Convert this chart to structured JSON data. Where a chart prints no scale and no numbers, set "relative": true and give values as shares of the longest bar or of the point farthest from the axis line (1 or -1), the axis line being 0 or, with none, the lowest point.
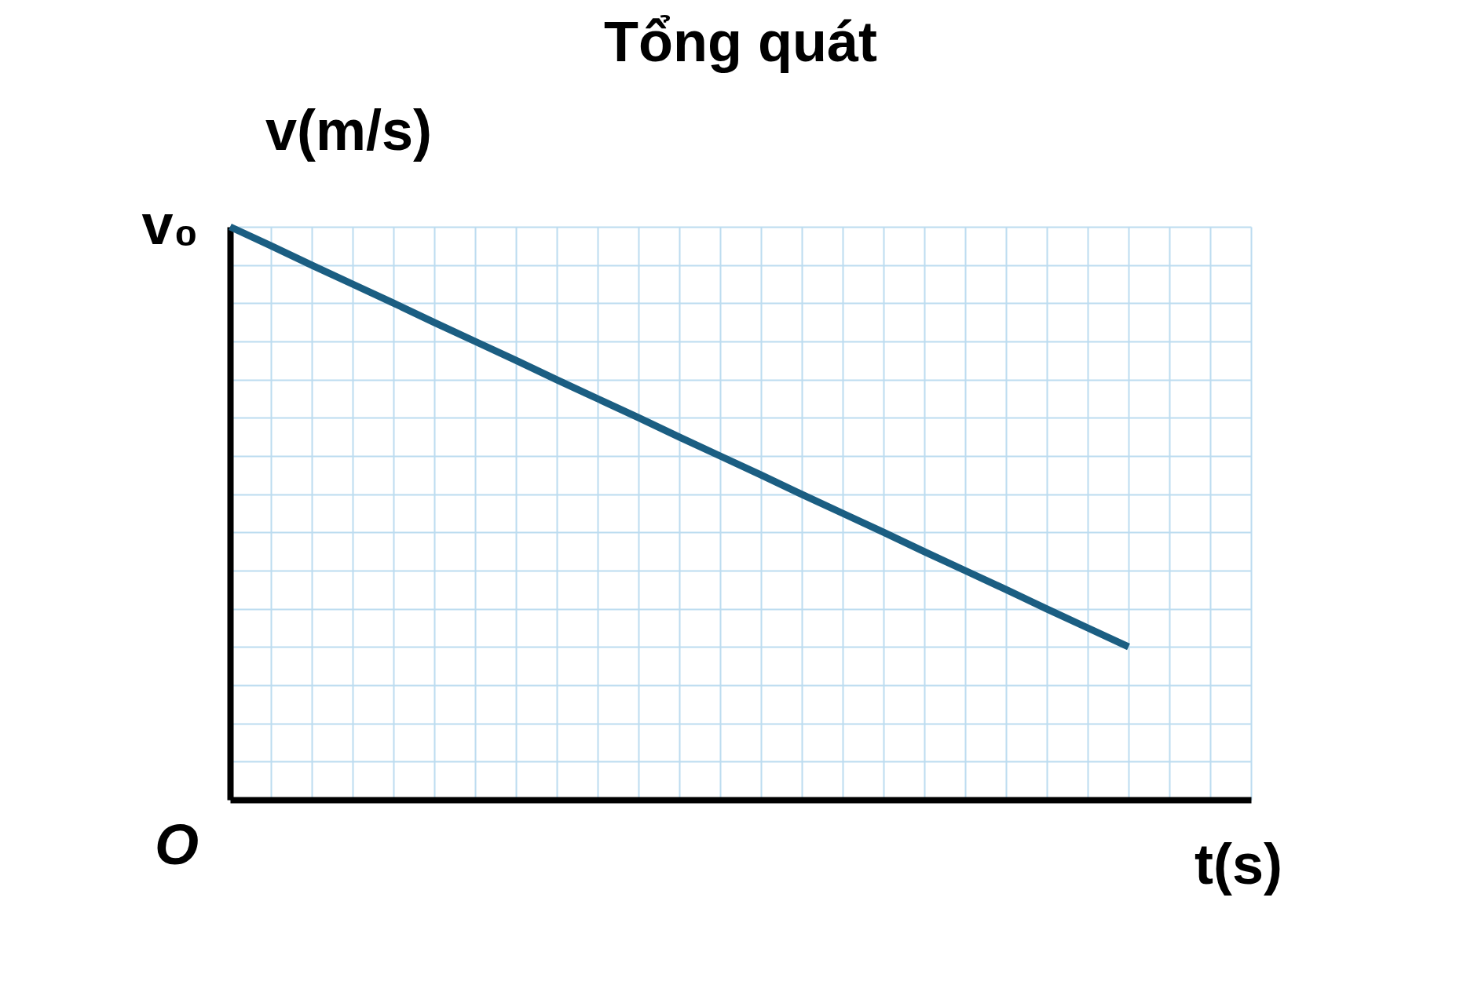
{
  "chart_data": {
    "type": "line",
    "title": "Tổng quát",
    "ylabel": "v(m/s)",
    "xlabel": "t(s)",
    "relative": true,
    "grid": true,
    "annotations": [
      "v₀",
      "O"
    ],
    "categories": [
      null,
      null,
      null,
      null,
      null,
      null,
      null,
      null,
      null,
      null,
      null,
      null,
      null,
      null,
      null,
      null,
      null,
      null,
      null,
      null,
      null,
      null,
      null,
      null,
      null,
      null
    ],
    "series": [
      {
        "color": "#1b5e82",
        "marker": "none",
        "values": [
          1,
          0.967,
          0.933,
          0.9,
          0.867,
          0.833,
          0.8,
          0.767,
          0.733,
          0.7,
          0.667,
          0.633,
          0.6,
          0.567,
          0.533,
          0.5,
          0.467,
          0.433,
          0.4,
          0.367,
          0.333,
          0.3,
          0.267,
          null,
          null,
          null
        ]
      }
    ]
  }
}
